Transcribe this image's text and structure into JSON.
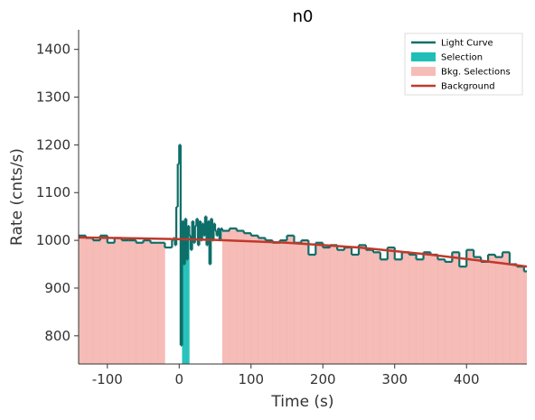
{
  "chart_data": {
    "type": "step",
    "title": "n0",
    "x_label": "Time (s)",
    "y_label": "Rate (cnts/s)",
    "xlim": [
      -140,
      484
    ],
    "ylim": [
      741,
      1441
    ],
    "xticks": [
      -100,
      0,
      100,
      200,
      300,
      400
    ],
    "yticks": [
      800,
      900,
      1000,
      1100,
      1200,
      1300,
      1400
    ],
    "legend": "upper right",
    "series": [
      {
        "name": "Light Curve",
        "color": "#0e6e69",
        "bins": [
          -140,
          -130,
          -120,
          -110,
          -100,
          -90,
          -80,
          -70,
          -60,
          -50,
          -40,
          -30,
          -20,
          -10,
          -8,
          -6,
          -4,
          -2,
          0,
          2,
          4,
          6,
          8,
          10,
          12,
          14,
          16,
          18,
          20,
          22,
          24,
          26,
          28,
          30,
          32,
          34,
          36,
          38,
          40,
          42,
          44,
          46,
          48,
          50,
          52,
          54,
          56,
          58,
          60,
          70,
          80,
          90,
          100,
          110,
          120,
          130,
          140,
          150,
          160,
          170,
          180,
          190,
          200,
          210,
          220,
          230,
          240,
          250,
          260,
          270,
          280,
          290,
          300,
          310,
          320,
          330,
          340,
          350,
          360,
          370,
          380,
          390,
          400,
          410,
          420,
          430,
          440,
          450,
          460,
          470,
          480,
          490
        ],
        "values": [
          1010,
          1005,
          1000,
          1010,
          995,
          1005,
          1000,
          1000,
          995,
          1000,
          995,
          995,
          985,
          1000,
          1005,
          990,
          1070,
          1160,
          1200,
          780,
          1040,
          950,
          1045,
          960,
          1030,
          1010,
          980,
          1040,
          995,
          1030,
          1045,
          990,
          1040,
          1000,
          1035,
          1010,
          1050,
          990,
          1040,
          950,
          1045,
          1000,
          1035,
          1020,
          1010,
          1025,
          1000,
          1025,
          1020,
          1025,
          1020,
          1015,
          1010,
          1005,
          1000,
          995,
          1000,
          1010,
          995,
          1000,
          970,
          995,
          985,
          990,
          980,
          985,
          970,
          990,
          980,
          975,
          960,
          985,
          960,
          975,
          970,
          960,
          975,
          970,
          960,
          955,
          975,
          945,
          980,
          965,
          955,
          970,
          965,
          975,
          950,
          945,
          935
        ]
      },
      {
        "name": "Selection",
        "color": "#1fbfb8",
        "interval": [
          4,
          14
        ]
      },
      {
        "name": "Bkg. Selections",
        "color": "#f4aba5",
        "intervals": [
          [
            -140,
            -20
          ],
          [
            60,
            484
          ]
        ]
      },
      {
        "name": "Background",
        "color": "#c0392b",
        "x": [
          -140,
          -50,
          50,
          150,
          250,
          350,
          450,
          484
        ],
        "values": [
          1006,
          1004,
          1001,
          995,
          985,
          970,
          952,
          945
        ]
      }
    ]
  }
}
